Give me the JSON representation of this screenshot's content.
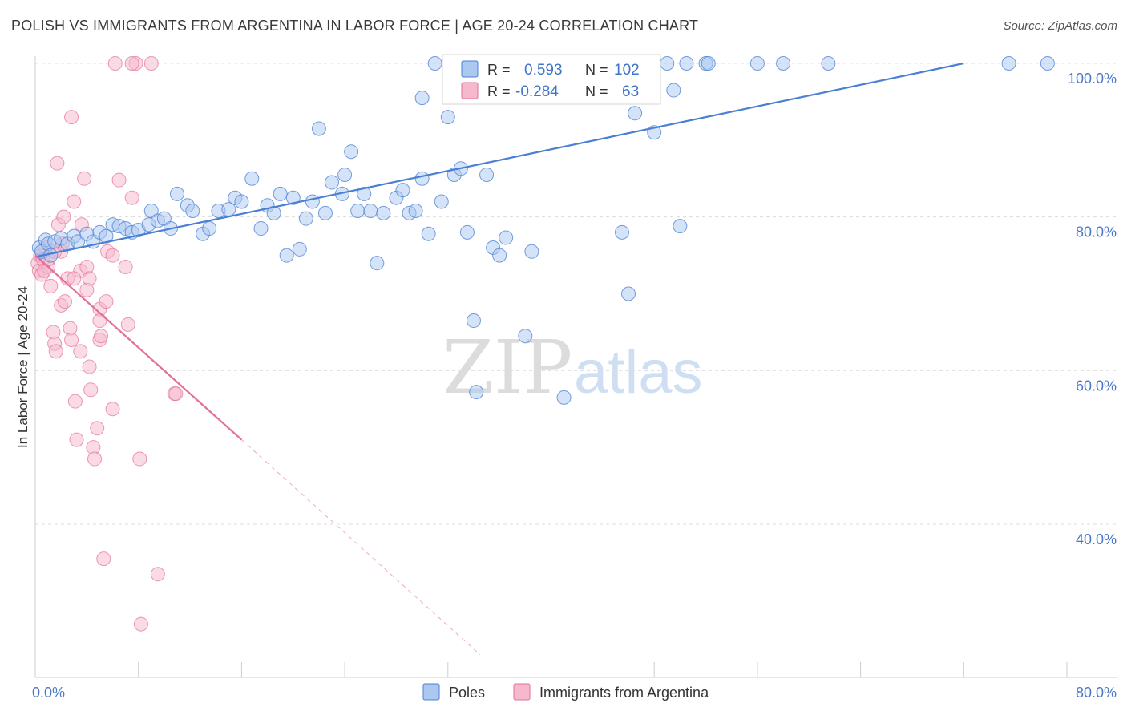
{
  "header": {
    "title": "POLISH VS IMMIGRANTS FROM ARGENTINA IN LABOR FORCE | AGE 20-24 CORRELATION CHART",
    "source": "Source: ZipAtlas.com"
  },
  "watermark": {
    "part1": "ZIP",
    "part2": "atlas"
  },
  "colors": {
    "poles": "#4a7fd4",
    "poles_fill": "#aac8f0",
    "argentina": "#e3709a",
    "argentina_fill": "#f5b8cc",
    "grid": "#dddddd",
    "axis_label": "#4a78c8"
  },
  "legend_box": {
    "rows": [
      {
        "r_label": "R =",
        "r_value": "0.593",
        "n_label": "N =",
        "n_value": "102"
      },
      {
        "r_label": "R =",
        "r_value": "-0.284",
        "n_label": "N =",
        "n_value": "63"
      }
    ]
  },
  "bottom_legend": [
    {
      "name": "Poles"
    },
    {
      "name": "Immigrants from Argentina"
    }
  ],
  "chart_data": {
    "type": "scatter",
    "title": "POLISH VS IMMIGRANTS FROM ARGENTINA IN LABOR FORCE | AGE 20-24 CORRELATION CHART",
    "xlabel": "",
    "ylabel": "In Labor Force | Age 20-24",
    "xlim": [
      0,
      80
    ],
    "ylim": [
      20,
      102
    ],
    "x_tick_labels": [
      {
        "value": 0,
        "label": "0.0%"
      },
      {
        "value": 80,
        "label": "80.0%"
      }
    ],
    "y_tick_labels": [
      {
        "value": 100,
        "label": "100.0%"
      },
      {
        "value": 80,
        "label": "80.0%"
      },
      {
        "value": 60,
        "label": "60.0%"
      },
      {
        "value": 40,
        "label": "40.0%"
      }
    ],
    "grid": true,
    "legend_position": "top-center",
    "series": [
      {
        "name": "Poles",
        "trend": {
          "x": [
            0,
            72
          ],
          "y": [
            74.8,
            100
          ]
        },
        "points": [
          [
            0.3,
            76
          ],
          [
            0.5,
            75.5
          ],
          [
            0.8,
            77
          ],
          [
            1,
            76.5
          ],
          [
            1.2,
            75
          ],
          [
            1.5,
            76.8
          ],
          [
            2,
            77.2
          ],
          [
            2.5,
            76.5
          ],
          [
            3,
            77.5
          ],
          [
            3.3,
            76.8
          ],
          [
            4,
            77.8
          ],
          [
            4.5,
            76.8
          ],
          [
            5,
            78
          ],
          [
            5.5,
            77.5
          ],
          [
            6,
            79
          ],
          [
            6.5,
            78.8
          ],
          [
            7,
            78.5
          ],
          [
            7.5,
            78
          ],
          [
            8,
            78.3
          ],
          [
            8.8,
            79
          ],
          [
            9,
            80.8
          ],
          [
            9.5,
            79.5
          ],
          [
            10,
            79.8
          ],
          [
            10.5,
            78.5
          ],
          [
            11,
            83
          ],
          [
            11.8,
            81.5
          ],
          [
            12.2,
            80.8
          ],
          [
            13,
            77.8
          ],
          [
            13.5,
            78.5
          ],
          [
            14.2,
            80.8
          ],
          [
            15,
            81
          ],
          [
            15.5,
            82.5
          ],
          [
            16,
            82
          ],
          [
            16.8,
            85
          ],
          [
            17.5,
            78.5
          ],
          [
            18,
            81.5
          ],
          [
            18.5,
            80.5
          ],
          [
            19,
            83
          ],
          [
            19.5,
            75
          ],
          [
            20,
            82.5
          ],
          [
            20.5,
            75.8
          ],
          [
            21,
            79.8
          ],
          [
            21.5,
            82
          ],
          [
            22,
            91.5
          ],
          [
            22.5,
            80.5
          ],
          [
            23,
            84.5
          ],
          [
            23.8,
            83
          ],
          [
            24,
            85.5
          ],
          [
            24.5,
            88.5
          ],
          [
            25,
            80.8
          ],
          [
            25.5,
            83
          ],
          [
            26,
            80.8
          ],
          [
            26.5,
            74
          ],
          [
            27,
            80.5
          ],
          [
            28,
            82.5
          ],
          [
            28.5,
            83.5
          ],
          [
            29,
            80.5
          ],
          [
            29.5,
            80.8
          ],
          [
            30,
            85
          ],
          [
            30,
            95.5
          ],
          [
            30.5,
            77.8
          ],
          [
            31.5,
            82
          ],
          [
            32,
            93
          ],
          [
            32.5,
            85.5
          ],
          [
            33,
            86.3
          ],
          [
            33.5,
            78
          ],
          [
            34,
            66.5
          ],
          [
            34.2,
            57.2
          ],
          [
            35,
            85.5
          ],
          [
            35.5,
            76
          ],
          [
            36,
            75
          ],
          [
            36.5,
            77.3
          ],
          [
            37,
            100
          ],
          [
            38,
            64.5
          ],
          [
            38.5,
            75.5
          ],
          [
            39,
            100
          ],
          [
            40,
            100
          ],
          [
            41,
            56.5
          ],
          [
            41.5,
            96
          ],
          [
            42,
            100
          ],
          [
            44,
            100
          ],
          [
            45.5,
            78
          ],
          [
            46,
            70
          ],
          [
            46.5,
            93.5
          ],
          [
            47,
            100
          ],
          [
            48,
            91
          ],
          [
            49,
            100
          ],
          [
            49.5,
            96.5
          ],
          [
            50,
            78.8
          ],
          [
            50.5,
            100
          ],
          [
            52,
            100
          ],
          [
            52.2,
            100
          ],
          [
            56,
            100
          ],
          [
            58,
            100
          ],
          [
            61.5,
            100
          ],
          [
            75.5,
            100
          ],
          [
            78.5,
            100
          ],
          [
            35.5,
            100
          ],
          [
            33.5,
            100
          ],
          [
            44.5,
            100
          ],
          [
            46,
            100
          ],
          [
            31,
            100
          ]
        ]
      },
      {
        "name": "Immigrants from Argentina",
        "trend": {
          "x": [
            0,
            16
          ],
          "y": [
            75,
            51
          ]
        },
        "trend_extension": {
          "x": [
            16,
            34.5
          ],
          "y": [
            51,
            23
          ]
        },
        "points": [
          [
            0.2,
            74
          ],
          [
            0.3,
            73
          ],
          [
            0.4,
            75
          ],
          [
            0.5,
            72.5
          ],
          [
            0.6,
            74.5
          ],
          [
            0.8,
            76
          ],
          [
            1,
            73.5
          ],
          [
            1.2,
            71
          ],
          [
            1.4,
            65
          ],
          [
            1.5,
            63.5
          ],
          [
            1.6,
            62.5
          ],
          [
            1.7,
            87
          ],
          [
            1.8,
            79
          ],
          [
            2,
            75.5
          ],
          [
            2,
            68.5
          ],
          [
            2.2,
            80
          ],
          [
            2.3,
            69
          ],
          [
            2.5,
            72
          ],
          [
            2.7,
            65.5
          ],
          [
            2.8,
            64
          ],
          [
            3,
            82
          ],
          [
            3.1,
            56
          ],
          [
            3.2,
            51
          ],
          [
            3.5,
            73
          ],
          [
            3.5,
            62.5
          ],
          [
            3.8,
            85
          ],
          [
            4,
            73.5
          ],
          [
            4,
            70.5
          ],
          [
            4.2,
            60.5
          ],
          [
            4.3,
            57.5
          ],
          [
            4.5,
            50
          ],
          [
            4.6,
            48.5
          ],
          [
            4.8,
            52.5
          ],
          [
            5,
            64
          ],
          [
            5,
            68
          ],
          [
            5.1,
            64.5
          ],
          [
            5.3,
            35.5
          ],
          [
            5.5,
            69
          ],
          [
            5.6,
            75.5
          ],
          [
            6,
            55
          ],
          [
            6,
            75
          ],
          [
            6.5,
            84.8
          ],
          [
            6.2,
            100
          ],
          [
            7,
            73.5
          ],
          [
            7.2,
            66
          ],
          [
            7.5,
            82.5
          ],
          [
            8.1,
            48.5
          ],
          [
            8.2,
            27
          ],
          [
            9.5,
            33.5
          ],
          [
            9,
            100
          ],
          [
            10.8,
            57
          ],
          [
            10.9,
            57
          ],
          [
            2.8,
            93
          ],
          [
            4.2,
            72
          ],
          [
            5,
            66.5
          ],
          [
            7.8,
            100
          ],
          [
            7.5,
            100
          ],
          [
            1,
            74.5
          ],
          [
            0.7,
            73
          ],
          [
            1.5,
            75.5
          ],
          [
            2.1,
            76.5
          ],
          [
            3,
            72
          ],
          [
            3.6,
            79
          ]
        ]
      }
    ]
  }
}
